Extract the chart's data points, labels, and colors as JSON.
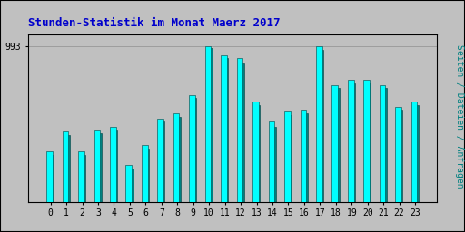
{
  "title": "Stunden-Statistik im Monat Maerz 2017",
  "title_color": "#0000CC",
  "title_fontsize": 9,
  "ylabel_right": "Seiten / Dateien / Anfragen",
  "ylabel_right_color": "#008080",
  "ylabel_right_fontsize": 7,
  "ytick_label": "993",
  "background_color": "#C0C0C0",
  "plot_bg_color": "#C0C0C0",
  "bar_color_main": "#00FFFF",
  "bar_color_secondary": "#008080",
  "bar_edge_color": "#004040",
  "border_color": "#000000",
  "categories": [
    0,
    1,
    2,
    3,
    4,
    5,
    6,
    7,
    8,
    9,
    10,
    11,
    12,
    13,
    14,
    15,
    16,
    17,
    18,
    19,
    20,
    21,
    22,
    23
  ],
  "values1": [
    930,
    942,
    930,
    943,
    945,
    922,
    934,
    950,
    953,
    964,
    993,
    988,
    986,
    960,
    948,
    954,
    955,
    993,
    970,
    973,
    973,
    970,
    957,
    960
  ],
  "values2": [
    928,
    940,
    928,
    941,
    943,
    920,
    932,
    948,
    951,
    962,
    992,
    986,
    983,
    958,
    945,
    952,
    953,
    991,
    968,
    971,
    971,
    968,
    955,
    958
  ],
  "ylim_min": 900,
  "ylim_max": 1000,
  "ytick_val": 993,
  "tick_fontsize": 7,
  "tick_color": "#000000"
}
